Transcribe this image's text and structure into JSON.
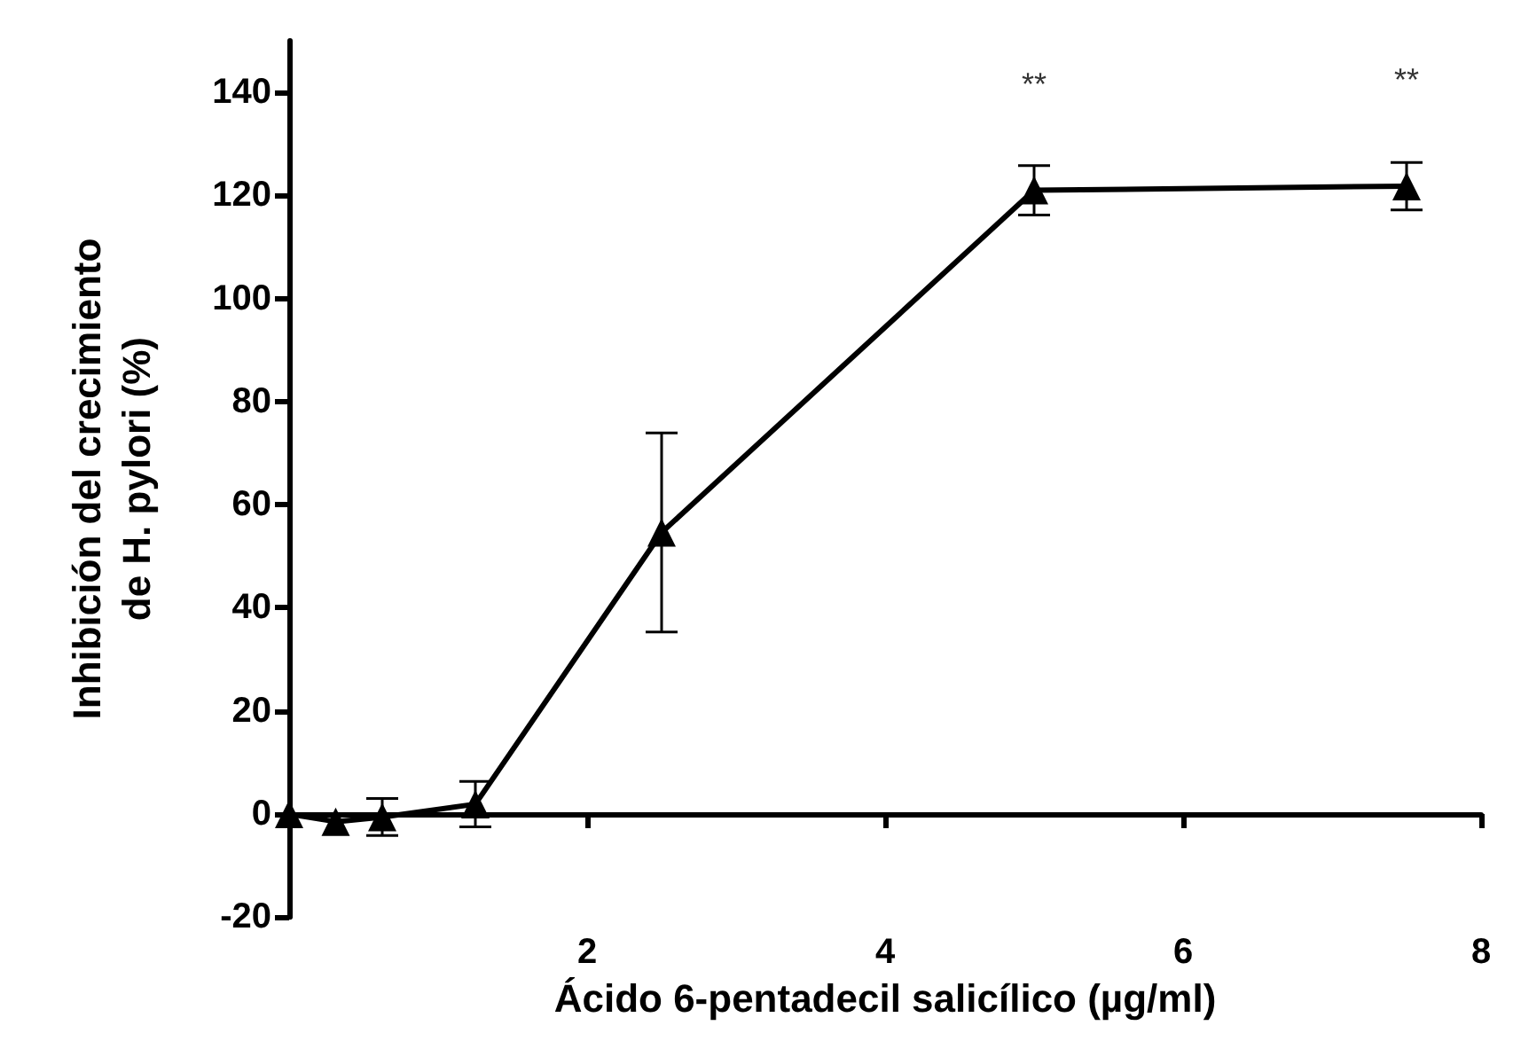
{
  "chart_data": {
    "type": "line",
    "xlabel": "Ácido 6-pentadecil salicílico (µg/ml)",
    "ylabel": "Inhibición del crecimiento\nde H. pylori (%)",
    "x": [
      0,
      0.3125,
      0.625,
      1.25,
      2.5,
      5,
      7.5
    ],
    "series": [
      {
        "color": "#000000",
        "values": [
          0,
          -1.5,
          -0.6,
          1.9,
          54.6,
          121,
          121.8
        ],
        "errors": [
          null,
          null,
          3.6,
          4.4,
          19.3,
          4.8,
          4.6
        ]
      }
    ],
    "xlim": [
      0,
      8
    ],
    "xticks": [
      2,
      4,
      6,
      8
    ],
    "ylim": [
      -20,
      150
    ],
    "yticks": [
      -20,
      0,
      20,
      40,
      60,
      80,
      100,
      120,
      140
    ],
    "annotations": [
      {
        "text": "**",
        "x": 5,
        "y": 121
      },
      {
        "text": "**",
        "x": 7.5,
        "y": 121.8
      }
    ],
    "marker": "triangle",
    "line_style": "solid"
  }
}
